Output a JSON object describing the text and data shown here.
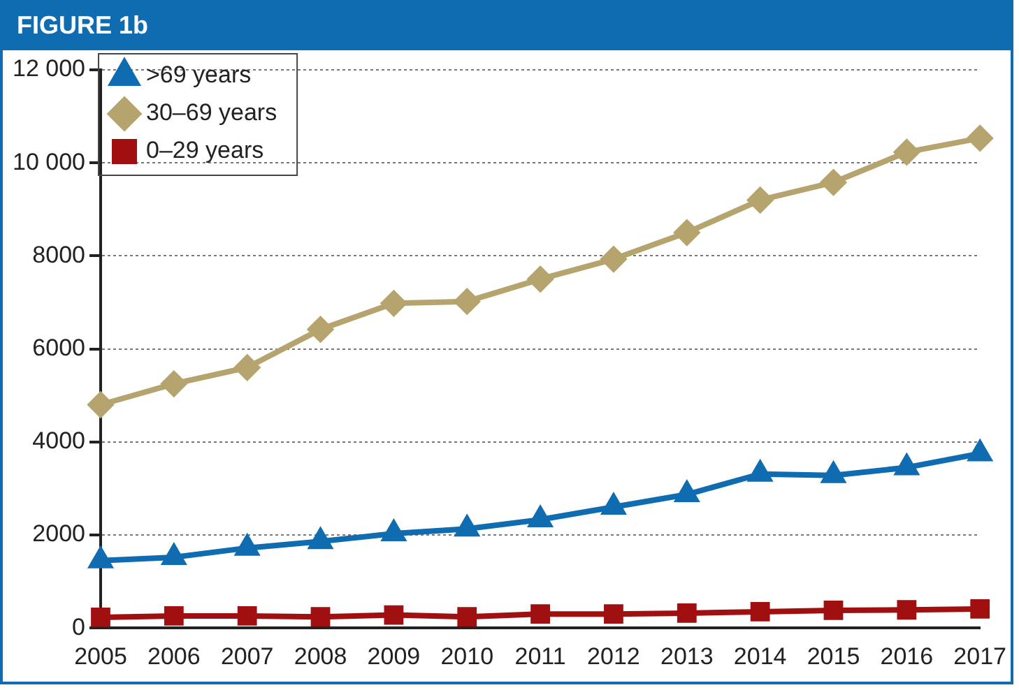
{
  "chart_data": {
    "type": "line",
    "title": "FIGURE 1b",
    "categories": [
      "2005",
      "2006",
      "2007",
      "2008",
      "2009",
      "2010",
      "2011",
      "2012",
      "2013",
      "2014",
      "2015",
      "2016",
      "2017"
    ],
    "series": [
      {
        "name": ">69 years",
        "color": "#0f6cb0",
        "marker": "triangle",
        "values": [
          1450,
          1520,
          1720,
          1860,
          2030,
          2130,
          2330,
          2600,
          2870,
          3310,
          3280,
          3450,
          3750
        ]
      },
      {
        "name": "30–69 years",
        "color": "#b5a46e",
        "marker": "diamond",
        "values": [
          4800,
          5250,
          5600,
          6420,
          6980,
          7020,
          7500,
          7930,
          8500,
          9200,
          9580,
          10230,
          10530
        ]
      },
      {
        "name": "0–29 years",
        "color": "#a01010",
        "marker": "square",
        "values": [
          230,
          260,
          260,
          240,
          280,
          240,
          300,
          300,
          320,
          350,
          380,
          390,
          410
        ]
      }
    ],
    "ylim": [
      0,
      12000
    ],
    "yticks": [
      0,
      2000,
      4000,
      6000,
      8000,
      {
        "value": 10000,
        "label": "10 000"
      },
      {
        "value": 12000,
        "label": "12 000"
      }
    ],
    "grid": "y",
    "legend": "top left",
    "line_style": "solid"
  }
}
